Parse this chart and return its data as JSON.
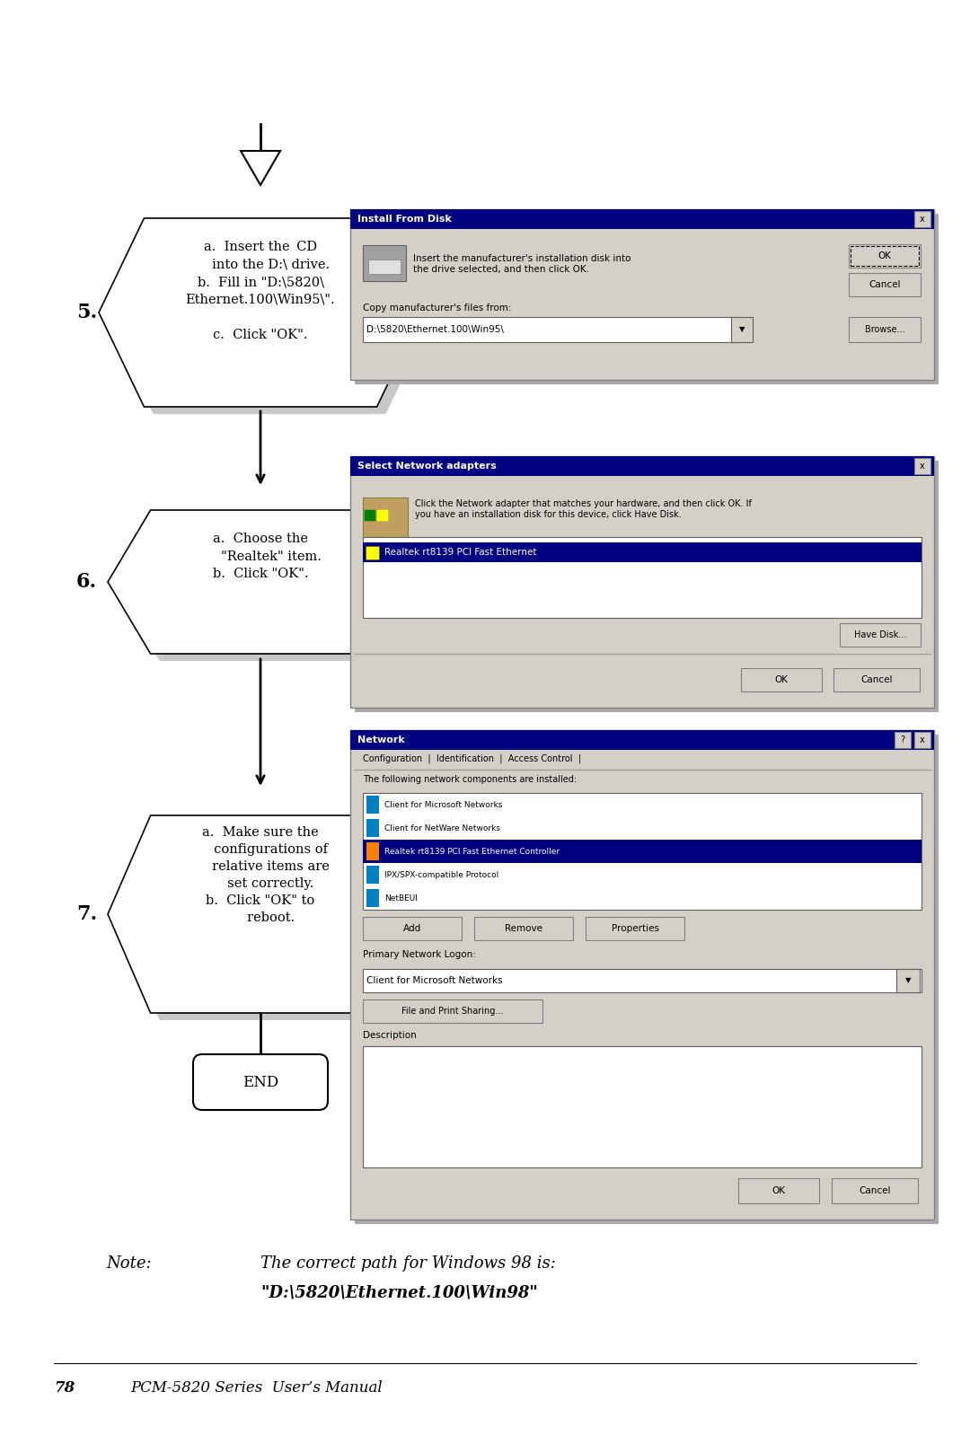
{
  "background_color": "#ffffff",
  "page_width": 10.8,
  "page_height": 16.18,
  "note_text1": "Note:",
  "note_text2": "The correct path for Windows 98 is:",
  "note_text3": "\"D:\\5820\\Ethernet.100\\Win98\"",
  "footer_page": "78",
  "footer_text": "PCM-5820 Series  User’s Manual"
}
